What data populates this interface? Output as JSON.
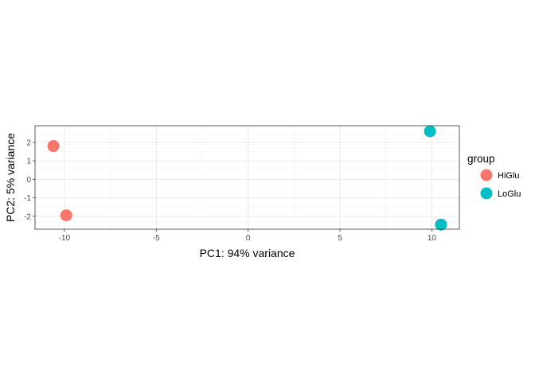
{
  "chart_data": {
    "type": "scatter",
    "xlabel": "PC1: 94% variance",
    "ylabel": "PC2: 5% variance",
    "xlim": [
      -11.6,
      11.5
    ],
    "ylim": [
      -2.7,
      2.9
    ],
    "x_ticks": [
      -10,
      -5,
      0,
      5,
      10
    ],
    "y_ticks": [
      -2,
      -1,
      0,
      1,
      2
    ],
    "grid": true,
    "legend": {
      "title": "group",
      "position": "right"
    },
    "series": [
      {
        "name": "HiGlu",
        "color": "#F8766D",
        "points": [
          {
            "x": -10.6,
            "y": 1.8
          },
          {
            "x": -9.9,
            "y": -1.95
          }
        ]
      },
      {
        "name": "LoGlu",
        "color": "#00BFC4",
        "points": [
          {
            "x": 9.9,
            "y": 2.6
          },
          {
            "x": 10.5,
            "y": -2.45
          }
        ]
      }
    ]
  }
}
